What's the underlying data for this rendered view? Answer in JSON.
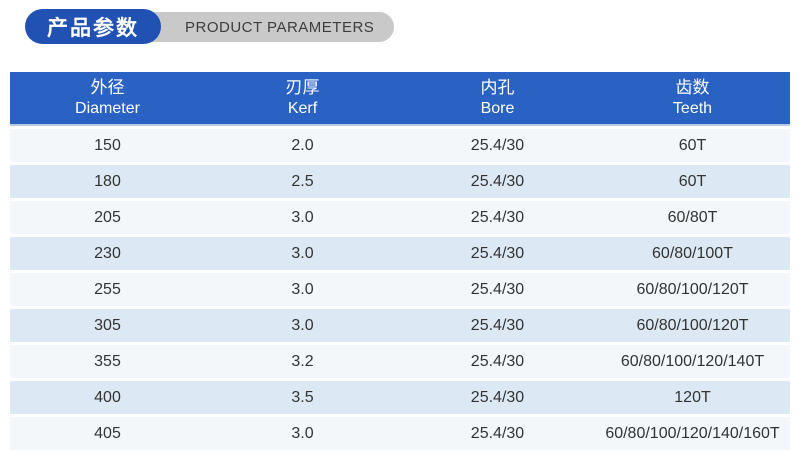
{
  "header": {
    "title_cn": "产品参数",
    "title_en": "PRODUCT PARAMETERS"
  },
  "table": {
    "columns": [
      {
        "cn": "外径",
        "en": "Diameter"
      },
      {
        "cn": "刃厚",
        "en": "Kerf"
      },
      {
        "cn": "内孔",
        "en": "Bore"
      },
      {
        "cn": "齿数",
        "en": "Teeth"
      }
    ],
    "rows": [
      [
        "150",
        "2.0",
        "25.4/30",
        "60T"
      ],
      [
        "180",
        "2.5",
        "25.4/30",
        "60T"
      ],
      [
        "205",
        "3.0",
        "25.4/30",
        "60/80T"
      ],
      [
        "230",
        "3.0",
        "25.4/30",
        "60/80/100T"
      ],
      [
        "255",
        "3.0",
        "25.4/30",
        "60/80/100/120T"
      ],
      [
        "305",
        "3.0",
        "25.4/30",
        "60/80/100/120T"
      ],
      [
        "355",
        "3.2",
        "25.4/30",
        "60/80/100/120/140T"
      ],
      [
        "400",
        "3.5",
        "25.4/30",
        "120T"
      ],
      [
        "405",
        "3.0",
        "25.4/30",
        "60/80/100/120/140/160T"
      ]
    ]
  },
  "colors": {
    "badge_blue": "#2152b3",
    "badge_gray": "#c9c9c9",
    "badge_gray_text": "#3d3d3d",
    "table_header_blue": "#2a62c4",
    "row_light": "#f3f7fa",
    "row_blue": "#dce9f4",
    "body_text": "#333333"
  }
}
